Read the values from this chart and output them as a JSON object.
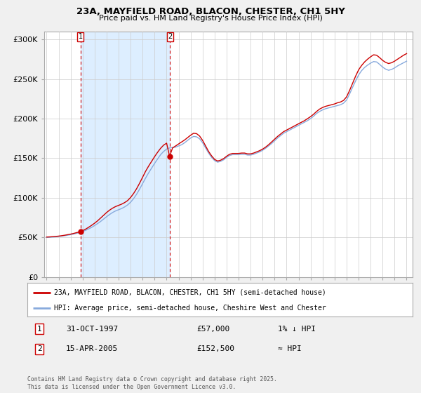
{
  "title1": "23A, MAYFIELD ROAD, BLACON, CHESTER, CH1 5HY",
  "title2": "Price paid vs. HM Land Registry's House Price Index (HPI)",
  "ylabel_ticks": [
    "£0",
    "£50K",
    "£100K",
    "£150K",
    "£200K",
    "£250K",
    "£300K"
  ],
  "ytick_vals": [
    0,
    50000,
    100000,
    150000,
    200000,
    250000,
    300000
  ],
  "ylim": [
    0,
    310000
  ],
  "xlim_start": 1994.8,
  "xlim_end": 2025.5,
  "xtick_years": [
    1995,
    1996,
    1997,
    1998,
    1999,
    2000,
    2001,
    2002,
    2003,
    2004,
    2005,
    2006,
    2007,
    2008,
    2009,
    2010,
    2011,
    2012,
    2013,
    2014,
    2015,
    2016,
    2017,
    2018,
    2019,
    2020,
    2021,
    2022,
    2023,
    2024,
    2025
  ],
  "bg_color": "#f0f0f0",
  "plot_bg_color": "#ffffff",
  "shade_color": "#ddeeff",
  "line_color_hpi": "#88aadd",
  "line_color_price": "#cc0000",
  "marker_color": "#cc0000",
  "purchase1_x": 1997.83,
  "purchase1_y": 57000,
  "purchase2_x": 2005.29,
  "purchase2_y": 152500,
  "legend_label1": "23A, MAYFIELD ROAD, BLACON, CHESTER, CH1 5HY (semi-detached house)",
  "legend_label2": "HPI: Average price, semi-detached house, Cheshire West and Chester",
  "table_row1": [
    "1",
    "31-OCT-1997",
    "£57,000",
    "1% ↓ HPI"
  ],
  "table_row2": [
    "2",
    "15-APR-2005",
    "£152,500",
    "≈ HPI"
  ],
  "footer": "Contains HM Land Registry data © Crown copyright and database right 2025.\nThis data is licensed under the Open Government Licence v3.0.",
  "hpi_data_x": [
    1995.0,
    1995.25,
    1995.5,
    1995.75,
    1996.0,
    1996.25,
    1996.5,
    1996.75,
    1997.0,
    1997.25,
    1997.5,
    1997.75,
    1998.0,
    1998.25,
    1998.5,
    1998.75,
    1999.0,
    1999.25,
    1999.5,
    1999.75,
    2000.0,
    2000.25,
    2000.5,
    2000.75,
    2001.0,
    2001.25,
    2001.5,
    2001.75,
    2002.0,
    2002.25,
    2002.5,
    2002.75,
    2003.0,
    2003.25,
    2003.5,
    2003.75,
    2004.0,
    2004.25,
    2004.5,
    2004.75,
    2005.0,
    2005.25,
    2005.5,
    2005.75,
    2006.0,
    2006.25,
    2006.5,
    2006.75,
    2007.0,
    2007.25,
    2007.5,
    2007.75,
    2008.0,
    2008.25,
    2008.5,
    2008.75,
    2009.0,
    2009.25,
    2009.5,
    2009.75,
    2010.0,
    2010.25,
    2010.5,
    2010.75,
    2011.0,
    2011.25,
    2011.5,
    2011.75,
    2012.0,
    2012.25,
    2012.5,
    2012.75,
    2013.0,
    2013.25,
    2013.5,
    2013.75,
    2014.0,
    2014.25,
    2014.5,
    2014.75,
    2015.0,
    2015.25,
    2015.5,
    2015.75,
    2016.0,
    2016.25,
    2016.5,
    2016.75,
    2017.0,
    2017.25,
    2017.5,
    2017.75,
    2018.0,
    2018.25,
    2018.5,
    2018.75,
    2019.0,
    2019.25,
    2019.5,
    2019.75,
    2020.0,
    2020.25,
    2020.5,
    2020.75,
    2021.0,
    2021.25,
    2021.5,
    2021.75,
    2022.0,
    2022.25,
    2022.5,
    2022.75,
    2023.0,
    2023.25,
    2023.5,
    2023.75,
    2024.0,
    2024.25,
    2024.5,
    2024.75,
    2025.0
  ],
  "hpi_data_y": [
    50000,
    50200,
    50500,
    50800,
    51200,
    51700,
    52200,
    52800,
    53500,
    54300,
    55200,
    56200,
    57500,
    59000,
    60800,
    62700,
    65000,
    67500,
    70200,
    73200,
    76200,
    79000,
    81500,
    83500,
    85000,
    86500,
    88500,
    91000,
    94500,
    99000,
    104500,
    111000,
    118000,
    125000,
    131500,
    137500,
    143500,
    149000,
    154500,
    158500,
    161500,
    163000,
    163500,
    164000,
    165500,
    167000,
    169500,
    172500,
    175500,
    177500,
    177000,
    174500,
    169500,
    163000,
    156500,
    151000,
    147000,
    145000,
    146000,
    148000,
    151000,
    153500,
    154500,
    154500,
    154500,
    155000,
    155000,
    154000,
    154000,
    155000,
    156500,
    158000,
    160000,
    162500,
    165500,
    168500,
    172000,
    175500,
    178500,
    181500,
    183500,
    185500,
    187500,
    189500,
    191500,
    193500,
    195500,
    197500,
    200000,
    203000,
    206500,
    209000,
    211000,
    212500,
    213500,
    214500,
    215500,
    216500,
    217500,
    219500,
    223500,
    231000,
    239500,
    247500,
    255000,
    260500,
    264500,
    267500,
    270000,
    272000,
    271500,
    268500,
    265000,
    262500,
    261000,
    262000,
    264000,
    266500,
    268500,
    270500,
    272500
  ],
  "price_line_x": [
    1995.0,
    1995.25,
    1995.5,
    1995.75,
    1996.0,
    1996.25,
    1996.5,
    1996.75,
    1997.0,
    1997.25,
    1997.5,
    1997.75,
    1998.0,
    1998.25,
    1998.5,
    1998.75,
    1999.0,
    1999.25,
    1999.5,
    1999.75,
    2000.0,
    2000.25,
    2000.5,
    2000.75,
    2001.0,
    2001.25,
    2001.5,
    2001.75,
    2002.0,
    2002.25,
    2002.5,
    2002.75,
    2003.0,
    2003.25,
    2003.5,
    2003.75,
    2004.0,
    2004.25,
    2004.5,
    2004.75,
    2005.0,
    2005.25,
    2005.5,
    2005.75,
    2006.0,
    2006.25,
    2006.5,
    2006.75,
    2007.0,
    2007.25,
    2007.5,
    2007.75,
    2008.0,
    2008.25,
    2008.5,
    2008.75,
    2009.0,
    2009.25,
    2009.5,
    2009.75,
    2010.0,
    2010.25,
    2010.5,
    2010.75,
    2011.0,
    2011.25,
    2011.5,
    2011.75,
    2012.0,
    2012.25,
    2012.5,
    2012.75,
    2013.0,
    2013.25,
    2013.5,
    2013.75,
    2014.0,
    2014.25,
    2014.5,
    2014.75,
    2015.0,
    2015.25,
    2015.5,
    2015.75,
    2016.0,
    2016.25,
    2016.5,
    2016.75,
    2017.0,
    2017.25,
    2017.5,
    2017.75,
    2018.0,
    2018.25,
    2018.5,
    2018.75,
    2019.0,
    2019.25,
    2019.5,
    2019.75,
    2020.0,
    2020.25,
    2020.5,
    2020.75,
    2021.0,
    2021.25,
    2021.5,
    2021.75,
    2022.0,
    2022.25,
    2022.5,
    2022.75,
    2023.0,
    2023.25,
    2023.5,
    2023.75,
    2024.0,
    2024.25,
    2024.5,
    2024.75,
    2025.0
  ],
  "price_line_y": [
    50500,
    50700,
    51000,
    51300,
    51700,
    52200,
    52800,
    53500,
    54200,
    55100,
    56100,
    57000,
    58500,
    60500,
    62800,
    65300,
    68000,
    71000,
    74500,
    78000,
    81500,
    84500,
    87000,
    89000,
    90500,
    92000,
    94000,
    96500,
    100500,
    105500,
    111500,
    118500,
    126000,
    133500,
    140000,
    146000,
    152000,
    157500,
    162500,
    166500,
    169000,
    152500,
    163000,
    165500,
    168000,
    170500,
    173000,
    176000,
    179000,
    181500,
    181000,
    178000,
    172500,
    165500,
    158500,
    153000,
    148500,
    146500,
    147500,
    149500,
    152500,
    155000,
    156000,
    156000,
    156000,
    156500,
    156500,
    155500,
    155500,
    156500,
    158000,
    159500,
    161500,
    164000,
    167000,
    170500,
    174000,
    177500,
    180500,
    183500,
    185500,
    187500,
    189500,
    191500,
    193500,
    195500,
    197500,
    200000,
    202500,
    205500,
    209000,
    212000,
    214000,
    215500,
    216500,
    217500,
    218500,
    220000,
    221000,
    223000,
    227500,
    235500,
    244500,
    253500,
    261500,
    267000,
    271500,
    275000,
    278000,
    280500,
    280000,
    277000,
    273500,
    271000,
    269500,
    270500,
    272500,
    275000,
    277500,
    280000,
    282000
  ]
}
